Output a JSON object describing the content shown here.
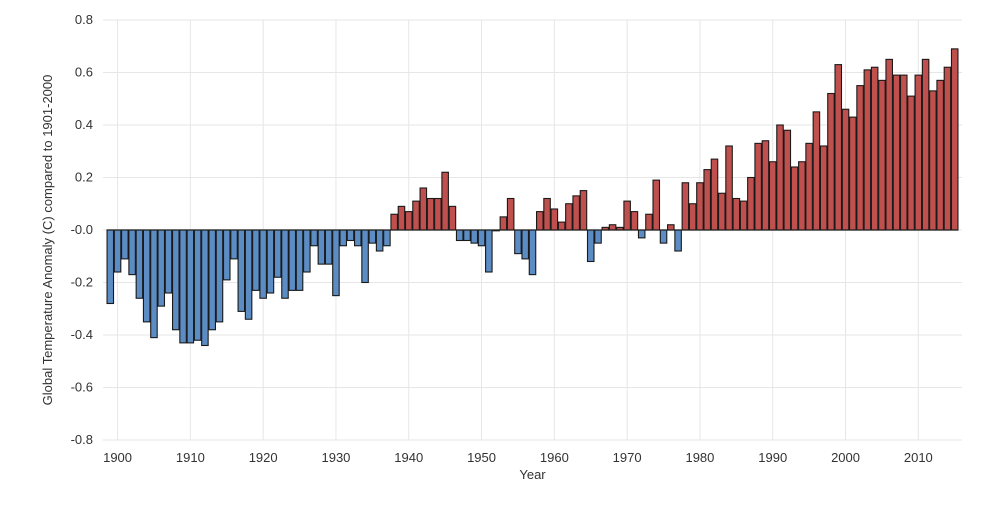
{
  "chart_data": {
    "type": "bar",
    "title": "",
    "xlabel": "Year",
    "ylabel": "Global Temperature Anomaly (C) compared to 1901-2000",
    "ylim": [
      -0.8,
      0.8
    ],
    "xlim": [
      1898,
      2016
    ],
    "x_ticks": [
      "1900",
      "1910",
      "1920",
      "1930",
      "1940",
      "1950",
      "1960",
      "1970",
      "1980",
      "1990",
      "2000",
      "2010"
    ],
    "y_ticks": [
      "0.8",
      "0.6",
      "0.4",
      "0.2",
      "-0.0",
      "-0.2",
      "-0.4",
      "-0.6",
      "-0.8"
    ],
    "grid": true,
    "colors": {
      "positive": "#c0504d",
      "negative": "#5b8cc4"
    },
    "start_year": 1899,
    "years": [
      1899,
      1900,
      1901,
      1902,
      1903,
      1904,
      1905,
      1906,
      1907,
      1908,
      1909,
      1910,
      1911,
      1912,
      1913,
      1914,
      1915,
      1916,
      1917,
      1918,
      1919,
      1920,
      1921,
      1922,
      1923,
      1924,
      1925,
      1926,
      1927,
      1928,
      1929,
      1930,
      1931,
      1932,
      1933,
      1934,
      1935,
      1936,
      1937,
      1938,
      1939,
      1940,
      1941,
      1942,
      1943,
      1944,
      1945,
      1946,
      1947,
      1948,
      1949,
      1950,
      1951,
      1952,
      1953,
      1954,
      1955,
      1956,
      1957,
      1958,
      1959,
      1960,
      1961,
      1962,
      1963,
      1964,
      1965,
      1966,
      1967,
      1968,
      1969,
      1970,
      1971,
      1972,
      1973,
      1974,
      1975,
      1976,
      1977,
      1978,
      1979,
      1980,
      1981,
      1982,
      1983,
      1984,
      1985,
      1986,
      1987,
      1988,
      1989,
      1990,
      1991,
      1992,
      1993,
      1994,
      1995,
      1996,
      1997,
      1998,
      1999,
      2000,
      2001,
      2002,
      2003,
      2004,
      2005,
      2006,
      2007,
      2008,
      2009,
      2010,
      2011,
      2012,
      2013,
      2014,
      2015
    ],
    "values": [
      -0.28,
      -0.16,
      -0.11,
      -0.17,
      -0.26,
      -0.35,
      -0.41,
      -0.29,
      -0.24,
      -0.38,
      -0.43,
      -0.43,
      -0.42,
      -0.44,
      -0.38,
      -0.35,
      -0.19,
      -0.11,
      -0.31,
      -0.34,
      -0.23,
      -0.26,
      -0.24,
      -0.18,
      -0.26,
      -0.23,
      -0.23,
      -0.16,
      -0.06,
      -0.13,
      -0.13,
      -0.25,
      -0.06,
      -0.04,
      -0.06,
      -0.2,
      -0.05,
      -0.08,
      -0.06,
      0.06,
      0.09,
      0.07,
      0.11,
      0.16,
      0.12,
      0.12,
      0.22,
      0.09,
      -0.04,
      -0.04,
      -0.05,
      -0.06,
      -0.16,
      0.0,
      0.05,
      0.12,
      -0.09,
      -0.11,
      -0.17,
      0.07,
      0.12,
      0.08,
      0.03,
      0.1,
      0.13,
      0.15,
      -0.12,
      -0.05,
      0.01,
      0.02,
      0.01,
      0.11,
      0.07,
      -0.03,
      0.06,
      0.19,
      -0.05,
      0.02,
      -0.08,
      0.18,
      0.1,
      0.18,
      0.23,
      0.27,
      0.14,
      0.32,
      0.12,
      0.11,
      0.2,
      0.33,
      0.34,
      0.26,
      0.4,
      0.38,
      0.24,
      0.26,
      0.33,
      0.45,
      0.32,
      0.52,
      0.63,
      0.46,
      0.43,
      0.55,
      0.61,
      0.62,
      0.57,
      0.65,
      0.59,
      0.59,
      0.51,
      0.59,
      0.65,
      0.53,
      0.57,
      0.62,
      0.69
    ]
  }
}
